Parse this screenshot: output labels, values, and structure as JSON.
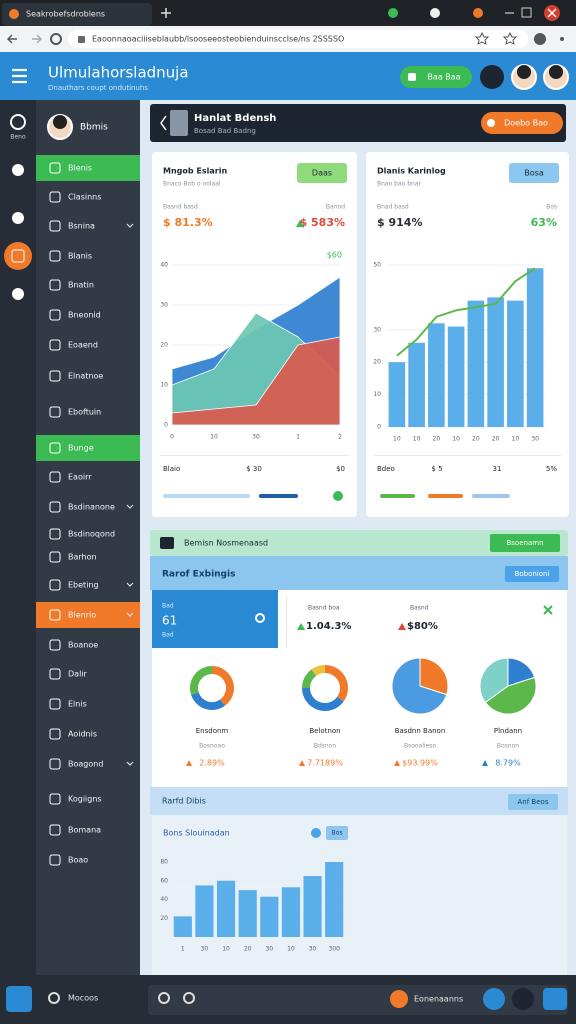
{
  "browser": {
    "tab": "Seakrobefsdroblens",
    "url": "Eaoonnaoaciiiseblaubb/lsooseeosteobienduinscclse/ns 2SSSSO"
  },
  "header": {
    "title": "Ulmulahorsladnuja",
    "subtitle": "Dnauthars coupt ondutinuhs",
    "button": "Baa Baa"
  },
  "rail": {
    "label": "Beno"
  },
  "sidebar": {
    "user": "Bbmis",
    "items": [
      {
        "label": "Blenis",
        "highlight": "#3cba54"
      },
      {
        "label": "Clasinns"
      },
      {
        "label": "Bsnina",
        "submenu": true
      },
      {
        "label": "Blanis"
      },
      {
        "label": "Bnatin"
      },
      {
        "label": "Bneonid"
      },
      {
        "label": "Eoaend"
      },
      {
        "label": "Elnatnoe"
      },
      {
        "label": "Eboftuin"
      },
      {
        "label": "Bunge",
        "highlight": "#3cba54"
      },
      {
        "label": "Eaoirr"
      },
      {
        "label": "Bsdinanone",
        "submenu": true
      },
      {
        "label": "Bsdinoqond"
      },
      {
        "label": "Barhon"
      },
      {
        "label": "Ebeting",
        "submenu": true
      },
      {
        "label": "Blenrio",
        "highlight": "#f07a2a",
        "submenu": true
      },
      {
        "label": "Boanoe"
      },
      {
        "label": "Dalir"
      },
      {
        "label": "Elnis"
      },
      {
        "label": "Aoidnis"
      },
      {
        "label": "Boagond",
        "submenu": true
      },
      {
        "label": "Kogiigns"
      },
      {
        "label": "Bomana"
      },
      {
        "label": "Boao"
      }
    ]
  },
  "page_header": {
    "title": "Hanlat Bdensh",
    "subtitle": "Bosad Bad Badng",
    "button": "Doebo Bao"
  },
  "cards": [
    {
      "title": "Mngob Eslarin",
      "subtitle": "Bnaco Bob o oolaal",
      "badge": "Daas",
      "stat_labels": [
        "Basnd basd",
        "Banod"
      ],
      "stats": [
        "$ 81.3%",
        "$ 583%"
      ],
      "corner": "$60",
      "footer": [
        "Blaio",
        "$ 30",
        "$0"
      ]
    },
    {
      "title": "Dlanis Karinlog",
      "subtitle": "Bnao bao bnar",
      "badge": "Bosa",
      "stat_labels": [
        "Bnad basd",
        "Bos"
      ],
      "stats": [
        "$ 914%",
        "63%"
      ],
      "footer": [
        "Bdeo",
        "$ 5",
        "31",
        "5%"
      ]
    }
  ],
  "section": {
    "title": "Bemisn Nosmenaasd",
    "button": "Bsoenamn"
  },
  "band": {
    "title": "Rarof Exbingis",
    "button": "Bobonioni"
  },
  "tile": {
    "top": "Bad",
    "value": "61",
    "bottom": "Bad"
  },
  "kpis": [
    {
      "label": "Basnd boa",
      "value": "1.04.3%"
    },
    {
      "label": "Basnd",
      "value": "$80%"
    }
  ],
  "section2": {
    "title": "Rarfd Dibis",
    "button": "Anf Beos"
  },
  "bottom_card": {
    "badge": "Bos"
  },
  "footer": {
    "left": "Mocoos",
    "right": "Eonenaanns"
  },
  "chart_data": [
    {
      "type": "area",
      "categories": [
        "0",
        "10",
        "30",
        "1",
        "2"
      ],
      "ylim": [
        0,
        40
      ],
      "yticks": [
        0,
        10,
        20,
        30,
        40
      ],
      "series": [
        {
          "color": "#2f7fd0",
          "values": [
            14,
            17,
            24,
            30,
            37
          ]
        },
        {
          "color": "#6cc7b3",
          "values": [
            10,
            14,
            28,
            22,
            12
          ]
        },
        {
          "color": "#d95a4e",
          "values": [
            3,
            4,
            5,
            20,
            22
          ]
        }
      ]
    },
    {
      "type": "bar",
      "categories": [
        "10",
        "10",
        "20",
        "10",
        "20",
        "20",
        "10",
        "30"
      ],
      "ylim": [
        0,
        50
      ],
      "yticks": [
        0,
        10,
        20,
        30,
        50
      ],
      "series": [
        {
          "type": "bar",
          "color": "#5aaeea",
          "values": [
            20,
            26,
            32,
            31,
            39,
            40,
            39,
            49
          ]
        },
        {
          "type": "line",
          "color": "#5cb84a",
          "values": [
            22,
            27,
            34,
            36,
            37,
            38,
            45,
            49
          ]
        }
      ]
    },
    {
      "type": "pie",
      "donut": true,
      "title": "Ensdonm",
      "subtitle": "Bosnoao",
      "caption": "2.89%",
      "values": [
        40,
        30,
        30
      ],
      "colors": [
        "#f07a2a",
        "#2f7fd0",
        "#5cb84a"
      ]
    },
    {
      "type": "pie",
      "donut": true,
      "title": "Belotnon",
      "subtitle": "Bdsnon",
      "caption": "7.7189%",
      "values": [
        35,
        40,
        15,
        10
      ],
      "colors": [
        "#f07a2a",
        "#2f7fd0",
        "#5cb84a",
        "#e8c23a"
      ]
    },
    {
      "type": "pie",
      "donut": false,
      "title": "Basdnn Banon",
      "subtitle": "Bsooalieso",
      "caption": "$93.99%",
      "values": [
        30,
        70
      ],
      "colors": [
        "#f07a2a",
        "#4a9be0"
      ]
    },
    {
      "type": "pie",
      "donut": false,
      "title": "Plndann",
      "subtitle": "Bosnon",
      "caption": "8.79%",
      "values": [
        20,
        45,
        35
      ],
      "colors": [
        "#2f7fd0",
        "#5cb84a",
        "#7fd0c8"
      ]
    },
    {
      "type": "bar",
      "title": "Bons Slouinadan",
      "categories": [
        "1",
        "30",
        "10",
        "20",
        "30",
        "10",
        "30",
        "300"
      ],
      "ylim": [
        0,
        80
      ],
      "yticks": [
        20,
        40,
        60,
        80
      ],
      "series": [
        {
          "type": "bar",
          "color": "#5aaeea",
          "values": [
            22,
            55,
            60,
            50,
            43,
            53,
            65,
            80
          ]
        }
      ]
    }
  ]
}
